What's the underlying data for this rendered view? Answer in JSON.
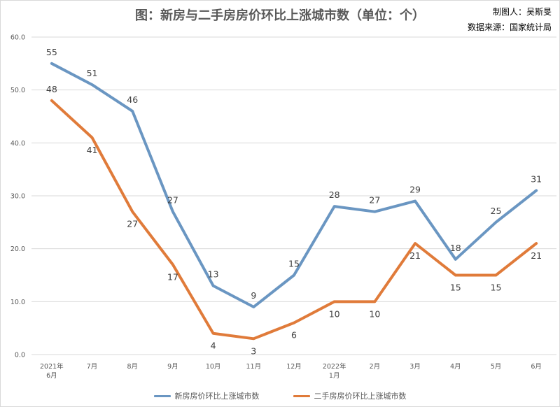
{
  "header": {
    "title": "图：新房与二手房房价环比上涨城市数（单位：个）",
    "author": "制图人：吴斯旻",
    "source": "数据来源：国家统计局"
  },
  "colors": {
    "new_home": "#6a96c2",
    "second_hand": "#e07b3a",
    "grid": "#d9d9d9",
    "axis_text": "#595959",
    "label_text": "#404040"
  },
  "chart_data": {
    "type": "line",
    "title": "图：新房与二手房房价环比上涨城市数（单位：个）",
    "xlabel": "",
    "ylabel": "",
    "ylim": [
      0,
      60
    ],
    "yticks": [
      "0.0",
      "10.0",
      "20.0",
      "30.0",
      "40.0",
      "50.0",
      "60.0"
    ],
    "grid": true,
    "legend_position": "bottom",
    "categories": [
      [
        "2021年",
        "6月"
      ],
      [
        "7月"
      ],
      [
        "8月"
      ],
      [
        "9月"
      ],
      [
        "10月"
      ],
      [
        "11月"
      ],
      [
        "12月"
      ],
      [
        "2022年",
        "1月"
      ],
      [
        "2月"
      ],
      [
        "3月"
      ],
      [
        "4月"
      ],
      [
        "5月"
      ],
      [
        "6月"
      ]
    ],
    "series": [
      {
        "name": "新房房价环比上涨城市数",
        "values": [
          55,
          51,
          46,
          27,
          13,
          9,
          15,
          28,
          27,
          29,
          18,
          25,
          31
        ]
      },
      {
        "name": "二手房房价环比上涨城市数",
        "values": [
          48,
          41,
          27,
          17,
          4,
          3,
          6,
          10,
          10,
          21,
          15,
          15,
          21
        ]
      }
    ]
  }
}
